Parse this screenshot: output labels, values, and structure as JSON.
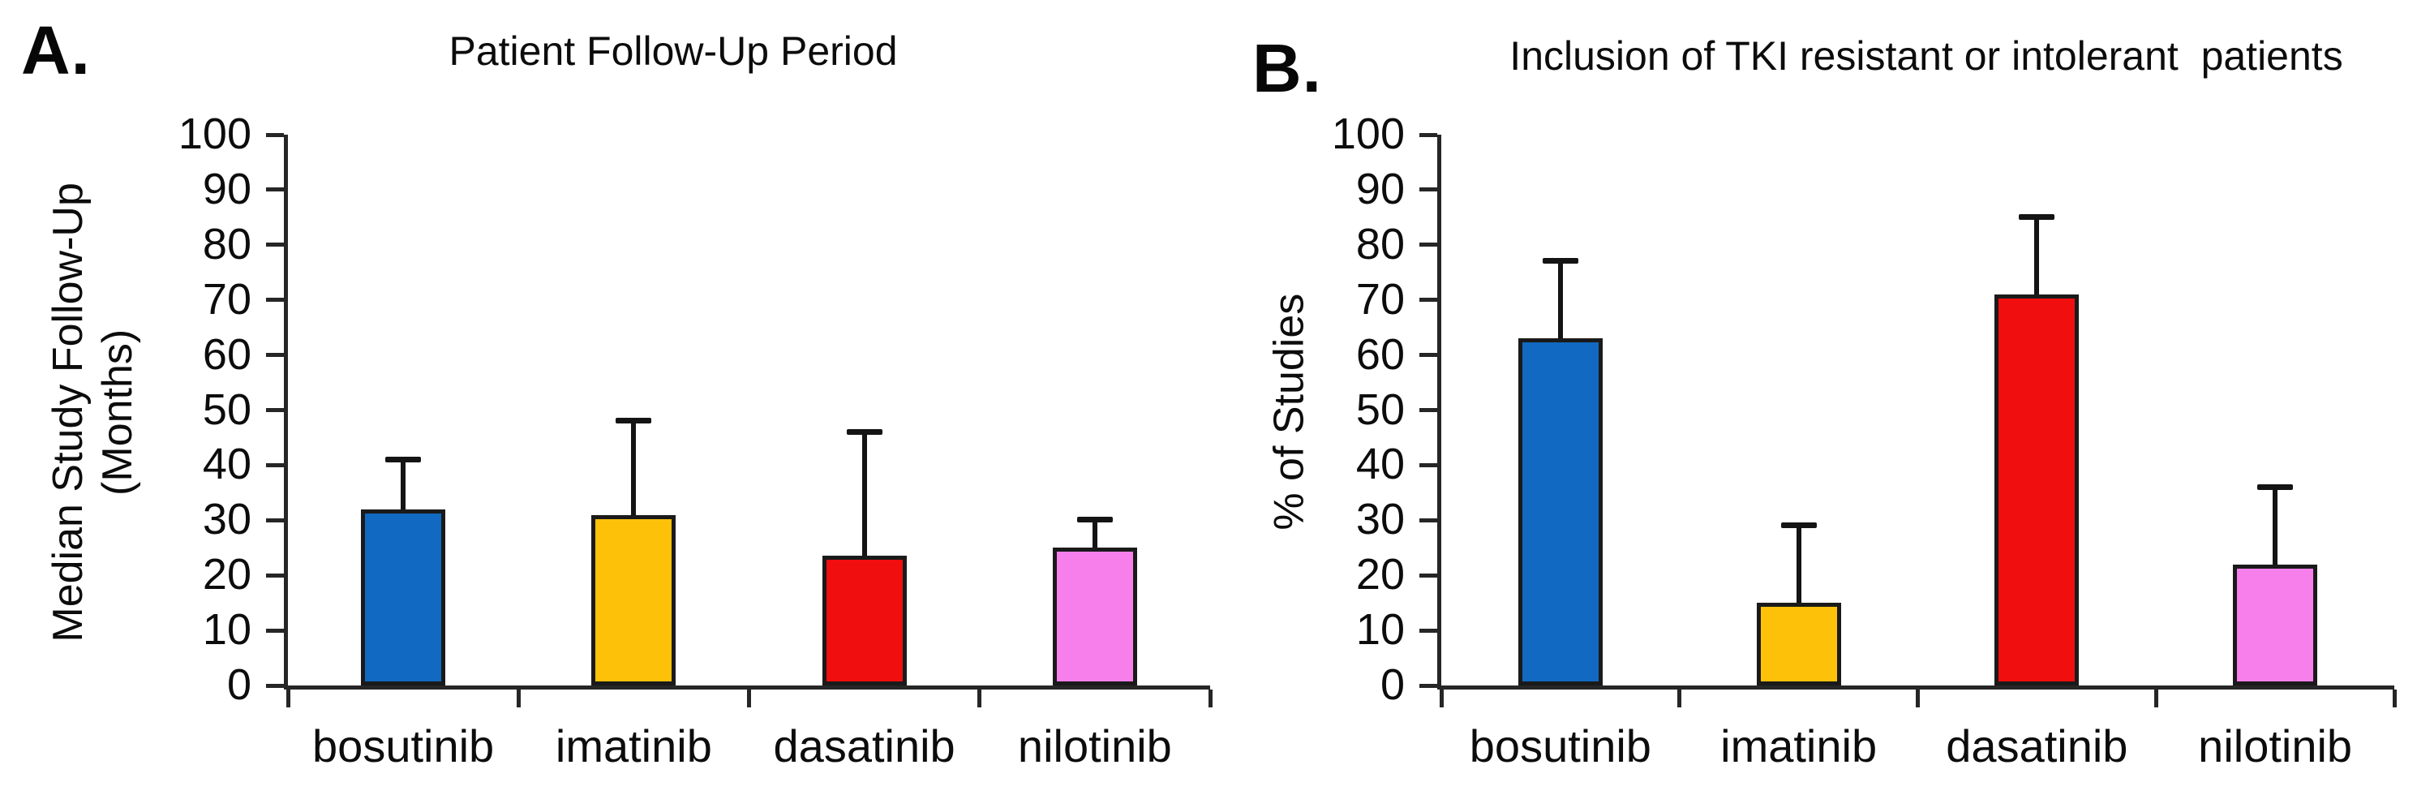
{
  "figure": {
    "background": "#ffffff",
    "axis_color": "#262626",
    "error_bar_color": "#141414"
  },
  "panels": [
    {
      "letter": "A."
    },
    {
      "letter": "B."
    }
  ],
  "chart_data": [
    {
      "type": "bar",
      "title": "Patient Follow-Up Period",
      "xlabel": "",
      "ylabel": "Median Study Follow-Up (Months)",
      "ylabel_lines": [
        "Median Study Follow-Up",
        "(Months)"
      ],
      "categories": [
        "bosutinib",
        "imatinib",
        "dasatinib",
        "nilotinib"
      ],
      "values": [
        32,
        31,
        23.5,
        25
      ],
      "error_upper": [
        41,
        48,
        46,
        30
      ],
      "bar_colors": [
        "#1169C1",
        "#FDC10A",
        "#F10E0E",
        "#F77FEC"
      ],
      "ylim": [
        0,
        100
      ],
      "yticks": [
        0,
        10,
        20,
        30,
        40,
        50,
        60,
        70,
        80,
        90,
        100
      ],
      "grid": false,
      "legend": false
    },
    {
      "type": "bar",
      "title": "Inclusion of TKI resistant or intolerant  patients",
      "xlabel": "",
      "ylabel": "% of Studies",
      "ylabel_lines": [
        "% of Studies"
      ],
      "categories": [
        "bosutinib",
        "imatinib",
        "dasatinib",
        "nilotinib"
      ],
      "values": [
        63,
        15,
        71,
        22
      ],
      "error_upper": [
        77,
        29,
        85,
        36
      ],
      "bar_colors": [
        "#1169C1",
        "#FDC10A",
        "#F10E0E",
        "#F77FEC"
      ],
      "ylim": [
        0,
        100
      ],
      "yticks": [
        0,
        10,
        20,
        30,
        40,
        50,
        60,
        70,
        80,
        90,
        100
      ],
      "grid": false,
      "legend": false
    }
  ]
}
